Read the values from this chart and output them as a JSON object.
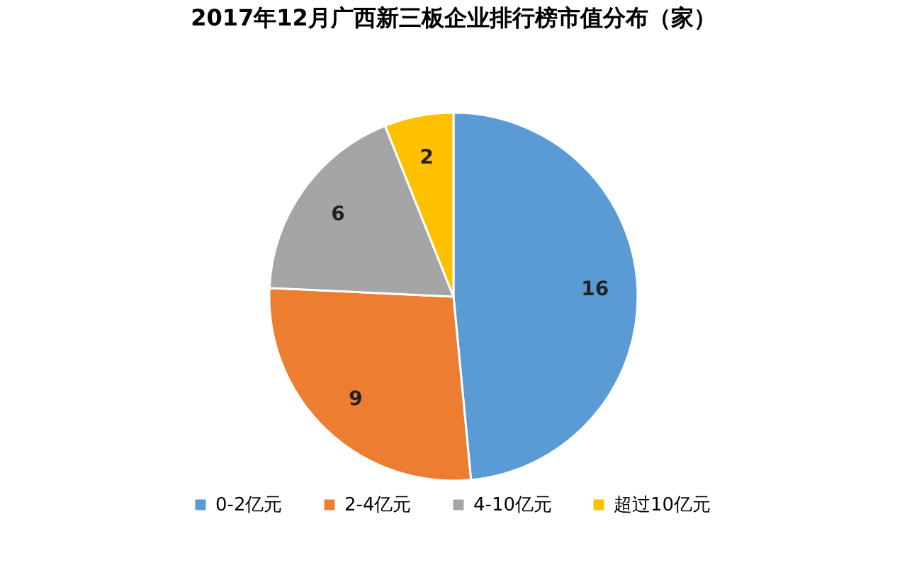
{
  "chart_data": {
    "type": "pie",
    "title": "2017年12月广西新三板企业排行榜市值分布（家）",
    "categories": [
      "0-2亿元",
      "2-4亿元",
      "4-10亿元",
      "超过10亿元"
    ],
    "values": [
      16,
      9,
      6,
      2
    ],
    "colors": [
      "#5b9bd5",
      "#ed7d31",
      "#a5a5a5",
      "#ffc000"
    ],
    "data_labels": true,
    "legend": "bottom"
  }
}
